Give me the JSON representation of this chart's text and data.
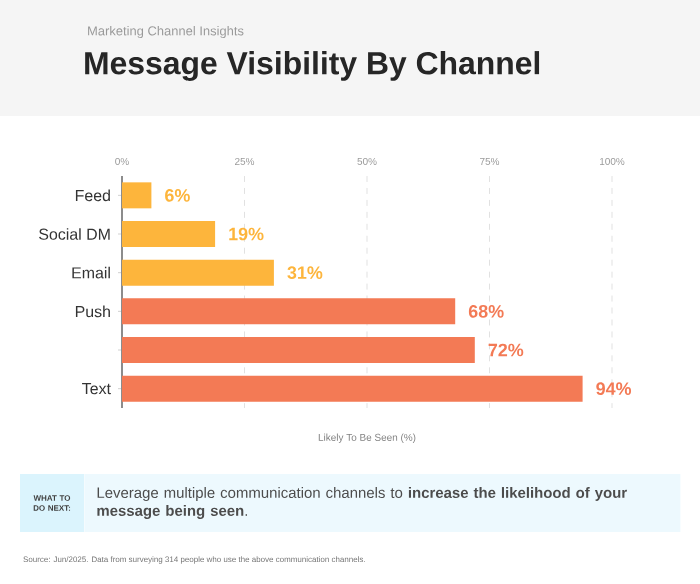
{
  "chart_data": {
    "type": "bar",
    "orientation": "horizontal",
    "title": "Message Visibility By Channel",
    "subtitle": "Marketing Channel Insights",
    "xlabel": "Likely To Be Seen (%)",
    "categories": [
      "Feed",
      "Social DM",
      "Email",
      "Push",
      null,
      "Text"
    ],
    "values": [
      6,
      19,
      31,
      68,
      72,
      94
    ],
    "value_labels": [
      "6%",
      "19%",
      "31%",
      "68%",
      "72%",
      "94%"
    ],
    "colors": [
      "#fdb53c",
      "#fdb53c",
      "#fdb53c",
      "#f37a55",
      "#f37a55",
      "#f37a55"
    ],
    "xlim": [
      0,
      100
    ],
    "xticks": [
      {
        "value": 0,
        "label": "0%"
      },
      {
        "value": 25,
        "label": "25%"
      },
      {
        "value": 50,
        "label": "50%"
      },
      {
        "value": 75,
        "label": "75%"
      },
      {
        "value": 100,
        "label": "100%"
      }
    ],
    "grid": "x",
    "annotations": [
      "WHAT TO DO NEXT:",
      "Leverage multiple communication channels to **increase the likelihood of your message being seen**.",
      "Source: Jun/2025. Data from surveying 314 people who use the above communication channels."
    ]
  }
}
